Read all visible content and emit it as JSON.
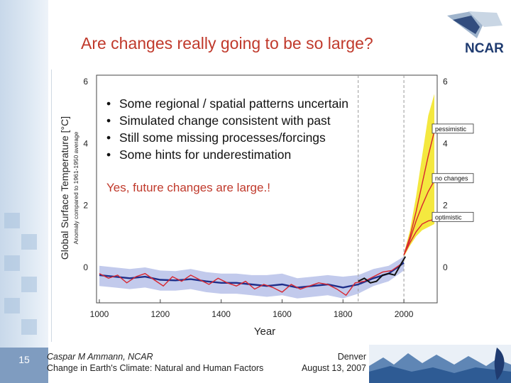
{
  "slide": {
    "title": "Are changes really going to be so large?",
    "logo_text": "NCAR",
    "bullets": [
      "Some regional / spatial patterns uncertain",
      "Simulated change consistent with past",
      "Still some missing processes/forcings",
      "Some hints for underestimation"
    ],
    "conclusion": "Yes, future changes are large.!",
    "slide_number": "15",
    "author": "Caspar M Ammann, NCAR",
    "talk_title": "Change in Earth's Climate: Natural and Human Factors",
    "location": "Denver",
    "date": "August 13, 2007"
  },
  "colors": {
    "title": "#c0392b",
    "reconstruction": "#d8262f",
    "model_mean": "#1f2f8a",
    "uncertainty_band": "#aeb8e6",
    "scenario_band": "#f3e62a",
    "observations": "#111111"
  },
  "chart_data": {
    "type": "line",
    "title": "",
    "xlabel": "Year",
    "ylabel": "Global Surface Temperature [°C]",
    "ylabel_sub": "Anomaly compared to 1961-1950 average",
    "xlim": [
      1000,
      2100
    ],
    "ylim": [
      -1.2,
      6.2
    ],
    "x_ticks": [
      1000,
      1200,
      1400,
      1600,
      1800,
      2000
    ],
    "y_ticks": [
      0,
      2,
      4,
      6
    ],
    "y_ticks_right": [
      0,
      2,
      4,
      6
    ],
    "vertical_markers": [
      1850,
      2000
    ],
    "annotations": [
      {
        "label": "pessimistic",
        "x": 2100,
        "y": 4.4
      },
      {
        "label": "no changes",
        "x": 2100,
        "y": 2.8
      },
      {
        "label": "optimistic",
        "x": 2100,
        "y": 1.55
      }
    ],
    "uncertainty_band": {
      "name": "Model range",
      "x": [
        1000,
        1050,
        1100,
        1150,
        1200,
        1250,
        1300,
        1350,
        1400,
        1450,
        1500,
        1550,
        1600,
        1650,
        1700,
        1750,
        1800,
        1850,
        1900,
        1950,
        2000
      ],
      "upper": [
        0.05,
        0.0,
        -0.05,
        0.0,
        -0.1,
        -0.12,
        -0.05,
        -0.15,
        -0.2,
        -0.2,
        -0.25,
        -0.25,
        -0.2,
        -0.35,
        -0.3,
        -0.25,
        -0.3,
        -0.25,
        -0.05,
        0.05,
        0.35
      ],
      "lower": [
        -0.6,
        -0.65,
        -0.7,
        -0.65,
        -0.75,
        -0.75,
        -0.7,
        -0.8,
        -0.85,
        -0.85,
        -0.9,
        -0.95,
        -0.9,
        -1.0,
        -0.95,
        -0.9,
        -1.0,
        -0.85,
        -0.6,
        -0.45,
        -0.1
      ]
    },
    "series": [
      {
        "name": "Model simulation",
        "x": [
          1000,
          1050,
          1100,
          1150,
          1200,
          1250,
          1300,
          1350,
          1400,
          1450,
          1500,
          1550,
          1600,
          1650,
          1700,
          1750,
          1800,
          1850,
          1900,
          1950,
          2000
        ],
        "values": [
          -0.25,
          -0.3,
          -0.35,
          -0.3,
          -0.4,
          -0.42,
          -0.38,
          -0.45,
          -0.5,
          -0.5,
          -0.55,
          -0.6,
          -0.55,
          -0.65,
          -0.6,
          -0.55,
          -0.65,
          -0.55,
          -0.35,
          -0.2,
          0.15
        ]
      },
      {
        "name": "Reconstruction",
        "x": [
          1000,
          1030,
          1060,
          1090,
          1120,
          1150,
          1180,
          1210,
          1240,
          1270,
          1300,
          1330,
          1360,
          1390,
          1420,
          1450,
          1480,
          1510,
          1540,
          1570,
          1600,
          1630,
          1660,
          1690,
          1720,
          1750,
          1780,
          1810,
          1840,
          1870,
          1900,
          1930,
          1960,
          1990
        ],
        "values": [
          -0.2,
          -0.35,
          -0.25,
          -0.5,
          -0.3,
          -0.2,
          -0.4,
          -0.6,
          -0.3,
          -0.45,
          -0.25,
          -0.4,
          -0.55,
          -0.35,
          -0.5,
          -0.6,
          -0.45,
          -0.7,
          -0.55,
          -0.65,
          -0.8,
          -0.55,
          -0.7,
          -0.6,
          -0.5,
          -0.55,
          -0.7,
          -0.9,
          -0.5,
          -0.45,
          -0.3,
          -0.15,
          -0.1,
          0.1
        ]
      },
      {
        "name": "Observations",
        "x": [
          1850,
          1870,
          1890,
          1910,
          1930,
          1950,
          1970,
          1990,
          2005
        ],
        "values": [
          -0.45,
          -0.35,
          -0.5,
          -0.45,
          -0.25,
          -0.2,
          -0.25,
          0.1,
          0.35
        ]
      },
      {
        "name": "Pessimistic projection",
        "x": [
          2000,
          2020,
          2040,
          2060,
          2080,
          2100
        ],
        "values": [
          0.4,
          1.0,
          1.8,
          2.7,
          3.6,
          4.4
        ]
      },
      {
        "name": "No changes projection",
        "x": [
          2000,
          2020,
          2040,
          2060,
          2080,
          2100
        ],
        "values": [
          0.4,
          0.9,
          1.5,
          2.0,
          2.45,
          2.8
        ]
      },
      {
        "name": "Optimistic projection",
        "x": [
          2000,
          2020,
          2040,
          2060,
          2080,
          2100
        ],
        "values": [
          0.4,
          0.8,
          1.15,
          1.4,
          1.5,
          1.55
        ]
      }
    ],
    "scenario_range": {
      "name": "Scenario range",
      "x": [
        2000,
        2020,
        2040,
        2060,
        2080,
        2100
      ],
      "upper": [
        0.45,
        1.2,
        2.3,
        3.6,
        4.9,
        5.6
      ],
      "lower": [
        0.35,
        0.7,
        1.0,
        1.2,
        1.3,
        1.4
      ]
    }
  }
}
